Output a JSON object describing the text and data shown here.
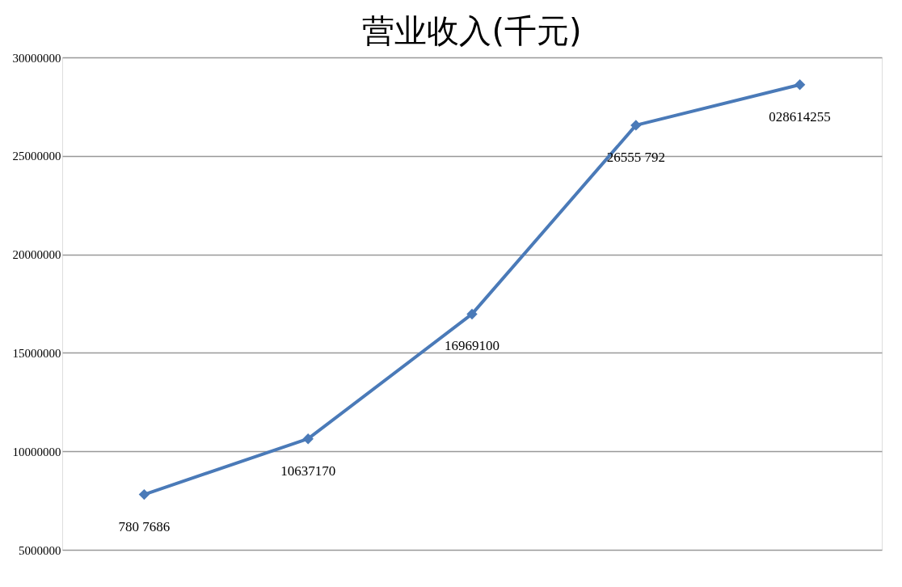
{
  "chart_data": {
    "type": "line",
    "title": "营业收入(千元)",
    "categories": [
      null,
      null,
      null,
      null,
      null
    ],
    "series": [
      {
        "color": "#4a7ab8",
        "values": [
          7807686,
          10637170,
          16969100,
          26555792,
          28614255
        ]
      }
    ],
    "value_labels": [
      "780 7686",
      "10637170",
      "16969100",
      "26555 792",
      "028614255"
    ],
    "ylim": [
      5000000,
      30000000
    ],
    "yticks": [
      5000000,
      10000000,
      15000000,
      20000000,
      25000000,
      30000000
    ],
    "grid": "y",
    "marker": "diamond",
    "line_style": "solid"
  }
}
